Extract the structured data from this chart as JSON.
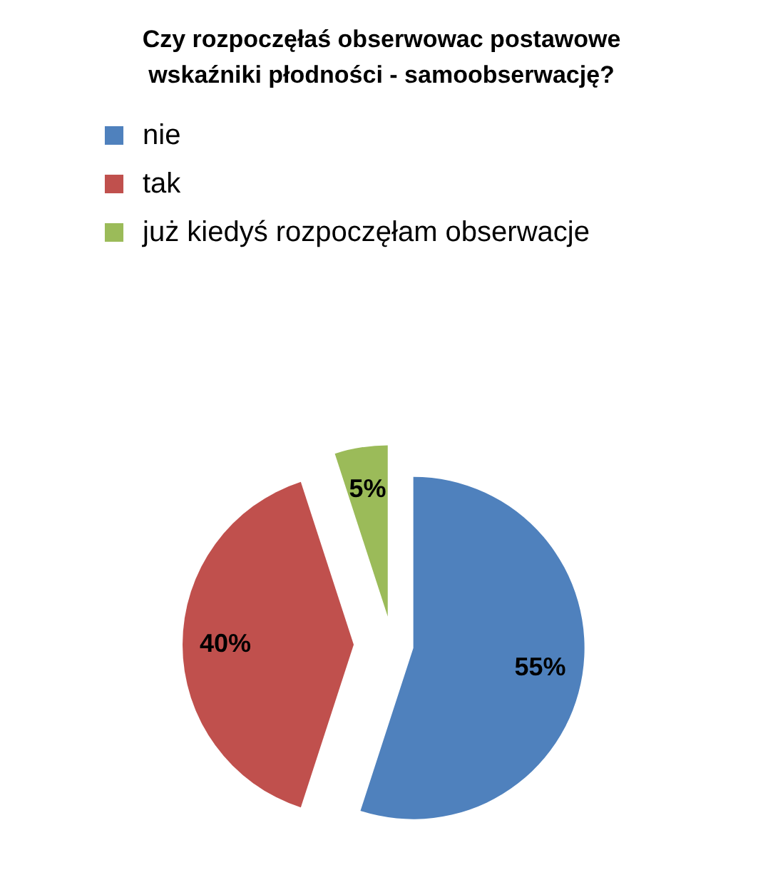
{
  "chart_data": {
    "type": "pie",
    "title": "Czy rozpoczęłaś obserwowac postawowe\nwskaźniki płodności - samoobserwację?",
    "categories": [
      "nie",
      "tak",
      "już kiedyś rozpoczęłam obserwacje"
    ],
    "values": [
      55,
      40,
      5
    ],
    "colors": [
      "#4f81bd",
      "#c0504d",
      "#9bbb59"
    ],
    "value_labels": [
      "55%",
      "40%",
      "5%"
    ],
    "legend": "top"
  }
}
